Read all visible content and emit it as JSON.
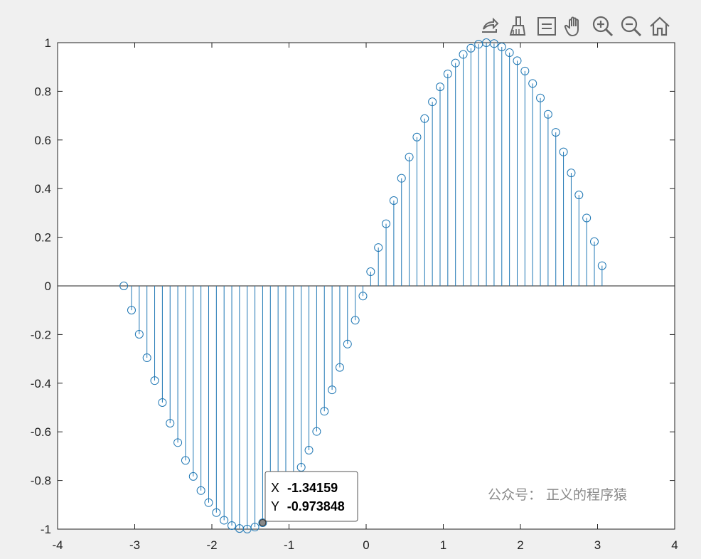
{
  "toolbar": {
    "icons": [
      "export-icon",
      "brush-icon",
      "datatip-icon",
      "pan-hand-icon",
      "zoom-in-icon",
      "zoom-out-icon",
      "home-icon"
    ]
  },
  "watermark": "公众号：  正义的程序猿",
  "datatip": {
    "x_label": "X",
    "x_value": "-1.34159",
    "y_label": "Y",
    "y_value": "-0.973848",
    "x": -1.34159,
    "y": -0.973848
  },
  "colors": {
    "stem": "#1f77b4",
    "axes_bg": "#ffffff",
    "figure_bg": "#f0f0f0"
  },
  "chart_data": {
    "type": "stem",
    "title": "",
    "xlabel": "",
    "ylabel": "",
    "xlim": [
      -4,
      4
    ],
    "ylim": [
      -1,
      1
    ],
    "xticks": [
      "-4",
      "-3",
      "-2",
      "-1",
      "0",
      "1",
      "2",
      "3",
      "4"
    ],
    "yticks": [
      "-1",
      "-0.8",
      "-0.6",
      "-0.4",
      "-0.2",
      "0",
      "0.2",
      "0.4",
      "0.6",
      "0.8",
      "1"
    ],
    "x_start": -3.14159,
    "x_step": 0.1,
    "y": [
      -0.0,
      -0.0998,
      -0.1987,
      -0.2955,
      -0.3894,
      -0.4794,
      -0.5646,
      -0.6442,
      -0.7174,
      -0.7833,
      -0.8415,
      -0.8912,
      -0.932,
      -0.9636,
      -0.9854,
      -0.9975,
      -0.9996,
      -0.9917,
      -0.9738,
      -0.9463,
      -0.9093,
      -0.8632,
      -0.8085,
      -0.7457,
      -0.6755,
      -0.5985,
      -0.5155,
      -0.4274,
      -0.335,
      -0.2392,
      -0.1411,
      -0.0416,
      0.0584,
      0.1577,
      0.2555,
      0.3508,
      0.4425,
      0.5298,
      0.6119,
      0.6878,
      0.7568,
      0.8183,
      0.8716,
      0.9162,
      0.9516,
      0.9775,
      0.9937,
      1.0,
      0.9962,
      0.9825,
      0.9589,
      0.9258,
      0.8835,
      0.8323,
      0.7728,
      0.7055,
      0.6313,
      0.5507,
      0.4646,
      0.3739,
      0.2794,
      0.1822,
      0.0831
    ],
    "grid": false,
    "legend": "none"
  }
}
